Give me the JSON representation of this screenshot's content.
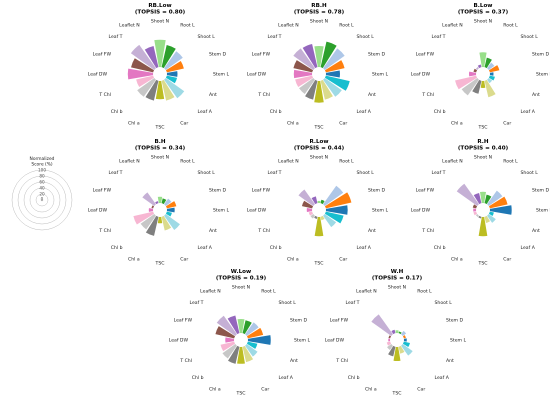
{
  "colors": [
    "#98df8a",
    "#2ca02c",
    "#aec7e8",
    "#ff7f0e",
    "#1f77b4",
    "#17becf",
    "#9edae5",
    "#dbdb8d",
    "#bcbd22",
    "#7f7f7f",
    "#c7c7c7",
    "#f7b6d2",
    "#e377c2",
    "#8c564b",
    "#c5b0d5",
    "#9467bd",
    "#d62728"
  ],
  "legend": {
    "title_line1": "Normalized",
    "title_line2": "Score (%)",
    "ticks": [
      "100",
      "80",
      "60",
      "40",
      "20",
      "0"
    ]
  },
  "chart_data": [
    {
      "type": "radial-bar",
      "title": "RB.Low",
      "subtitle": "(TOPSIS = 0.80)",
      "categories": [
        "Shoot N",
        "Root L",
        "Shoot L",
        "Stem D",
        "Stem L",
        "Ant",
        "Leaf A",
        "Car",
        "TSC",
        "Chl a",
        "Chl b",
        "T Chl",
        "Leaf DW",
        "Leaf FW",
        "Leaf T",
        "Leaflet N"
      ],
      "values": [
        78,
        65,
        60,
        50,
        30,
        30,
        65,
        58,
        52,
        58,
        60,
        50,
        72,
        65,
        82,
        62
      ]
    },
    {
      "type": "radial-bar",
      "title": "RB.H",
      "subtitle": "(TOPSIS = 0.78)",
      "categories": [
        "Shoot N",
        "Root L",
        "Shoot L",
        "Stem D",
        "Stem L",
        "Ant",
        "Leaf A",
        "Car",
        "TSC",
        "Chl a",
        "Chl b",
        "T Chl",
        "Leaf DW",
        "Leaf FW",
        "Leaf T",
        "Leaflet N"
      ],
      "values": [
        60,
        75,
        70,
        55,
        40,
        70,
        60,
        55,
        62,
        55,
        50,
        50,
        52,
        55,
        70,
        68
      ]
    },
    {
      "type": "radial-bar",
      "title": "B.Low",
      "subtitle": "(TOPSIS = 0.37)",
      "categories": [
        "Shoot N",
        "Root L",
        "Shoot L",
        "Stem D",
        "Stem L",
        "Ant",
        "Leaf A",
        "Car",
        "TSC",
        "Chl a",
        "Chl b",
        "T Chl",
        "Leaf DW",
        "Leaf FW",
        "Leaf T",
        "Leaflet N"
      ],
      "values": [
        42,
        28,
        20,
        28,
        10,
        15,
        12,
        48,
        20,
        38,
        55,
        62,
        20,
        8,
        5,
        8
      ]
    },
    {
      "type": "radial-bar",
      "title": "B.H",
      "subtitle": "(TOPSIS = 0.34)",
      "categories": [
        "Shoot N",
        "Root L",
        "Shoot L",
        "Stem D",
        "Stem L",
        "Ant",
        "Leaf A",
        "Car",
        "TSC",
        "Chl a",
        "Chl b",
        "T Chl",
        "Leaf DW",
        "Leaf FW",
        "Leaf T",
        "Leaflet N"
      ],
      "values": [
        18,
        14,
        20,
        28,
        22,
        15,
        50,
        40,
        18,
        56,
        48,
        58,
        12,
        5,
        42,
        6
      ]
    },
    {
      "type": "radial-bar",
      "title": "R.Low",
      "subtitle": "(TOPSIS = 0.44)",
      "categories": [
        "Shoot N",
        "Root L",
        "Shoot L",
        "Stem D",
        "Stem L",
        "Ant",
        "Leaf A",
        "Car",
        "TSC",
        "Chl a",
        "Chl b",
        "T Chl",
        "Leaf DW",
        "Leaf FW",
        "Leaf T",
        "Leaflet N"
      ],
      "values": [
        6,
        10,
        65,
        75,
        62,
        52,
        40,
        10,
        55,
        6,
        10,
        10,
        15,
        30,
        52,
        20
      ]
    },
    {
      "type": "radial-bar",
      "title": "R.H",
      "subtitle": "(TOPSIS = 0.40)",
      "categories": [
        "Shoot N",
        "Root L",
        "Shoot L",
        "Stem D",
        "Stem L",
        "Ant",
        "Leaf A",
        "Car",
        "TSC",
        "Chl a",
        "Chl b",
        "T Chl",
        "Leaf DW",
        "Leaf FW",
        "Leaf T",
        "Leaflet N"
      ],
      "values": [
        32,
        25,
        48,
        52,
        62,
        12,
        25,
        18,
        55,
        5,
        5,
        8,
        8,
        10,
        72,
        30
      ]
    },
    {
      "type": "radial-bar",
      "title": "W.Low",
      "subtitle": "(TOPSIS = 0.19)",
      "categories": [
        "Shoot N",
        "Root L",
        "Shoot L",
        "Stem D",
        "Stem L",
        "Ant",
        "Leaf A",
        "Car",
        "TSC",
        "Chl a",
        "Chl b",
        "T Chl",
        "Leaf DW",
        "Leaf FW",
        "Leaf T",
        "Leaflet N"
      ],
      "values": [
        40,
        38,
        42,
        45,
        65,
        28,
        38,
        45,
        48,
        50,
        45,
        40,
        25,
        55,
        65,
        52
      ]
    },
    {
      "type": "radial-bar",
      "title": "W.H",
      "subtitle": "(TOPSIS = 0.17)",
      "categories": [
        "Shoot N",
        "Root L",
        "Shoot L",
        "Stem D",
        "Stem L",
        "Ant",
        "Leaf A",
        "Car",
        "TSC",
        "Chl a",
        "Chl b",
        "T Chl",
        "Leaf DW",
        "Leaf FW",
        "Leaf T",
        "Leaflet N"
      ],
      "values": [
        8,
        5,
        12,
        6,
        8,
        18,
        35,
        20,
        40,
        28,
        15,
        10,
        5,
        5,
        70,
        10
      ]
    }
  ]
}
